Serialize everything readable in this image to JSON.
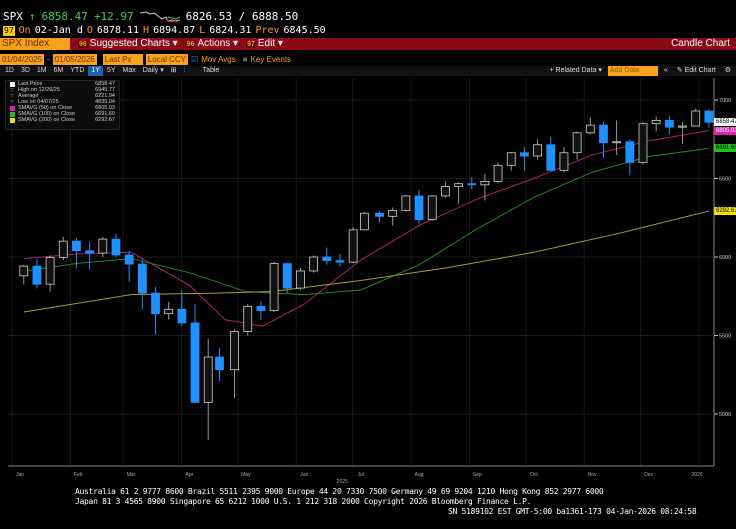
{
  "header": {
    "ticker": "SPX",
    "last": "6858.47",
    "change": "+12.97",
    "bid_ask": "6826.53 / 6888.50",
    "icon_label": "97",
    "on_label": "On",
    "date": "02-Jan d",
    "o_label": "O",
    "open": "6878.11",
    "h_label": "H",
    "high": "6894.87",
    "l_label": "L",
    "low": "6824.31",
    "prev_label": "Prev",
    "prev": "6845.50"
  },
  "menubar": {
    "security": "SPX Index",
    "suggested": "Suggested Charts",
    "suggested_num": "96",
    "actions": "Actions",
    "actions_num": "96",
    "edit": "Edit",
    "edit_num": "97",
    "title": "Candle Chart"
  },
  "controls": {
    "start_date": "01/04/2025",
    "end_date": "01/05/2026",
    "field": "Last Px",
    "currency": "Local CCY",
    "mov_avgs": "Mov Avgs",
    "key_events": "Key Events",
    "mov_avgs_checked": true,
    "key_events_checked": false
  },
  "toolbar": {
    "periods": [
      "1D",
      "3D",
      "1M",
      "6M",
      "YTD",
      "1Y",
      "5Y",
      "Max"
    ],
    "selected_period": "1Y",
    "frequency": "Daily",
    "table": "Table",
    "related": "Related Data",
    "add_data_placeholder": "Add Data",
    "edit_chart": "Edit Chart"
  },
  "legend": [
    {
      "label": "Last Price",
      "value": "6858.47",
      "color": "#ffffff"
    },
    {
      "label": "High on 12/26/25",
      "value": "6945.77",
      "color": ""
    },
    {
      "label": "Average",
      "value": "6221.94",
      "color": ""
    },
    {
      "label": "Low on 04/07/25",
      "value": "4835.04",
      "color": ""
    },
    {
      "label": "SMAVG (50)  on Close",
      "value": "6805.03",
      "color": "#e020b0"
    },
    {
      "label": "SMAVG (100)  on Close",
      "value": "6691.60",
      "color": "#20c020"
    },
    {
      "label": "SMAVG (200)  on Close",
      "value": "6292.67",
      "color": "#f0e000"
    }
  ],
  "chart_data": {
    "type": "candlestick",
    "ylim": [
      4700,
      7100
    ],
    "yticks": [
      "7000",
      "6500",
      "6000",
      "5500",
      "5000"
    ],
    "xticks": [
      "Jan",
      "Feb",
      "Mar",
      "Apr",
      "May",
      "Jun",
      "Jul",
      "Aug",
      "Sep",
      "Oct",
      "Nov",
      "Dec",
      "2026"
    ],
    "year_label": "2025",
    "up_color": "#d0d0d0",
    "down_color": "#1e90ff",
    "candles": [
      [
        "2025-01-03",
        5880,
        5950,
        5825,
        5942
      ],
      [
        "2025-01-10",
        5942,
        5990,
        5800,
        5827
      ],
      [
        "2025-01-17",
        5827,
        6010,
        5780,
        5997
      ],
      [
        "2025-01-24",
        5997,
        6128,
        5980,
        6101
      ],
      [
        "2025-01-31",
        6101,
        6120,
        5930,
        6040
      ],
      [
        "2025-02-07",
        6040,
        6100,
        5920,
        6025
      ],
      [
        "2025-02-14",
        6025,
        6127,
        6000,
        6114
      ],
      [
        "2025-02-21",
        6114,
        6147,
        6000,
        6013
      ],
      [
        "2025-02-28",
        6013,
        6040,
        5840,
        5955
      ],
      [
        "2025-03-07",
        5955,
        5990,
        5666,
        5770
      ],
      [
        "2025-03-14",
        5770,
        5810,
        5505,
        5639
      ],
      [
        "2025-03-21",
        5639,
        5715,
        5600,
        5667
      ],
      [
        "2025-03-28",
        5667,
        5786,
        5560,
        5580
      ],
      [
        "2025-04-04",
        5580,
        5700,
        5070,
        5074
      ],
      [
        "2025-04-11",
        5074,
        5480,
        4835,
        5363
      ],
      [
        "2025-04-17",
        5363,
        5420,
        5210,
        5282
      ],
      [
        "2025-04-25",
        5282,
        5540,
        5100,
        5525
      ],
      [
        "2025-05-02",
        5525,
        5700,
        5500,
        5686
      ],
      [
        "2025-05-09",
        5686,
        5720,
        5600,
        5659
      ],
      [
        "2025-05-16",
        5659,
        5970,
        5650,
        5958
      ],
      [
        "2025-05-23",
        5958,
        5960,
        5770,
        5802
      ],
      [
        "2025-05-30",
        5802,
        5930,
        5790,
        5911
      ],
      [
        "2025-06-06",
        5911,
        6010,
        5900,
        6000
      ],
      [
        "2025-06-13",
        6000,
        6060,
        5950,
        5977
      ],
      [
        "2025-06-20",
        5977,
        6020,
        5940,
        5967
      ],
      [
        "2025-06-27",
        5967,
        6190,
        5960,
        6173
      ],
      [
        "2025-07-03",
        6173,
        6285,
        6170,
        6279
      ],
      [
        "2025-07-11",
        6279,
        6290,
        6220,
        6259
      ],
      [
        "2025-07-18",
        6259,
        6315,
        6200,
        6297
      ],
      [
        "2025-07-25",
        6297,
        6395,
        6290,
        6389
      ],
      [
        "2025-08-01",
        6389,
        6427,
        6210,
        6238
      ],
      [
        "2025-08-08",
        6238,
        6395,
        6230,
        6389
      ],
      [
        "2025-08-15",
        6389,
        6481,
        6380,
        6449
      ],
      [
        "2025-08-22",
        6449,
        6475,
        6340,
        6467
      ],
      [
        "2025-08-29",
        6467,
        6508,
        6430,
        6460
      ],
      [
        "2025-09-05",
        6460,
        6530,
        6360,
        6481
      ],
      [
        "2025-09-12",
        6481,
        6600,
        6470,
        6584
      ],
      [
        "2025-09-19",
        6584,
        6670,
        6550,
        6664
      ],
      [
        "2025-09-26",
        6664,
        6700,
        6550,
        6643
      ],
      [
        "2025-10-03",
        6643,
        6750,
        6620,
        6715
      ],
      [
        "2025-10-10",
        6715,
        6764,
        6550,
        6552
      ],
      [
        "2025-10-17",
        6552,
        6700,
        6540,
        6664
      ],
      [
        "2025-10-24",
        6664,
        6800,
        6620,
        6791
      ],
      [
        "2025-10-31",
        6791,
        6890,
        6780,
        6840
      ],
      [
        "2025-11-07",
        6840,
        6860,
        6630,
        6728
      ],
      [
        "2025-11-14",
        6728,
        6870,
        6650,
        6734
      ],
      [
        "2025-11-21",
        6734,
        6750,
        6521,
        6603
      ],
      [
        "2025-11-28",
        6603,
        6860,
        6590,
        6849
      ],
      [
        "2025-12-05",
        6849,
        6895,
        6800,
        6870
      ],
      [
        "2025-12-12",
        6870,
        6901,
        6780,
        6827
      ],
      [
        "2025-12-19",
        6827,
        6860,
        6720,
        6834
      ],
      [
        "2025-12-26",
        6834,
        6945.77,
        6830,
        6930
      ],
      [
        "2026-01-02",
        6930,
        6940,
        6824,
        6858
      ]
    ],
    "series": [
      {
        "name": "SMAVG (50)  on Close",
        "color": "#b0206a",
        "dates": [
          "2025-01-03",
          "2025-02-01",
          "2025-03-01",
          "2025-04-01",
          "2025-04-20",
          "2025-05-10",
          "2025-06-01",
          "2025-07-01",
          "2025-08-01",
          "2025-09-01",
          "2025-10-01",
          "2025-11-01",
          "2025-12-01",
          "2026-01-02"
        ],
        "values": [
          5990,
          6020,
          6030,
          5820,
          5600,
          5560,
          5700,
          5980,
          6200,
          6370,
          6500,
          6650,
          6740,
          6805.03
        ]
      },
      {
        "name": "SMAVG (100)  on Close",
        "color": "#208a20",
        "dates": [
          "2025-01-03",
          "2025-02-01",
          "2025-03-01",
          "2025-04-01",
          "2025-05-01",
          "2025-06-01",
          "2025-07-01",
          "2025-08-01",
          "2025-09-01",
          "2025-10-01",
          "2025-11-01",
          "2025-12-01",
          "2026-01-02"
        ],
        "values": [
          5910,
          5960,
          5990,
          5900,
          5780,
          5760,
          5790,
          5950,
          6180,
          6380,
          6540,
          6640,
          6691.6
        ]
      },
      {
        "name": "SMAVG (200)  on Close",
        "color": "#a8a020",
        "dates": [
          "2025-01-03",
          "2025-03-01",
          "2025-04-15",
          "2025-05-15",
          "2025-07-01",
          "2025-08-15",
          "2025-10-01",
          "2025-11-15",
          "2026-01-02"
        ],
        "values": [
          5650,
          5760,
          5770,
          5780,
          5850,
          5930,
          6030,
          6150,
          6292.67
        ]
      }
    ],
    "price_tags": [
      {
        "value": "6858.47",
        "color": "#ffffff"
      },
      {
        "value": "6805.03",
        "color": "#e020b0"
      },
      {
        "value": "6691.60",
        "color": "#20c020"
      },
      {
        "value": "6292.67",
        "color": "#f0e000"
      }
    ]
  },
  "footer": {
    "line1": "Australia 61 2 9777 8600 Brazil 5511 2395 9000 Europe 44 20 7330 7500 Germany 49 69 9204 1210 Hong Kong 852 2977 6000",
    "line2": "Japan 81 3 4565 8900      Singapore 65 6212 1000      U.S. 1 212 318 2000        Copyright 2026 Bloomberg Finance L.P.",
    "line3": "SN 5189102 EST  GMT-5:00 ba1361-173 04-Jan-2026 08:24:58"
  }
}
